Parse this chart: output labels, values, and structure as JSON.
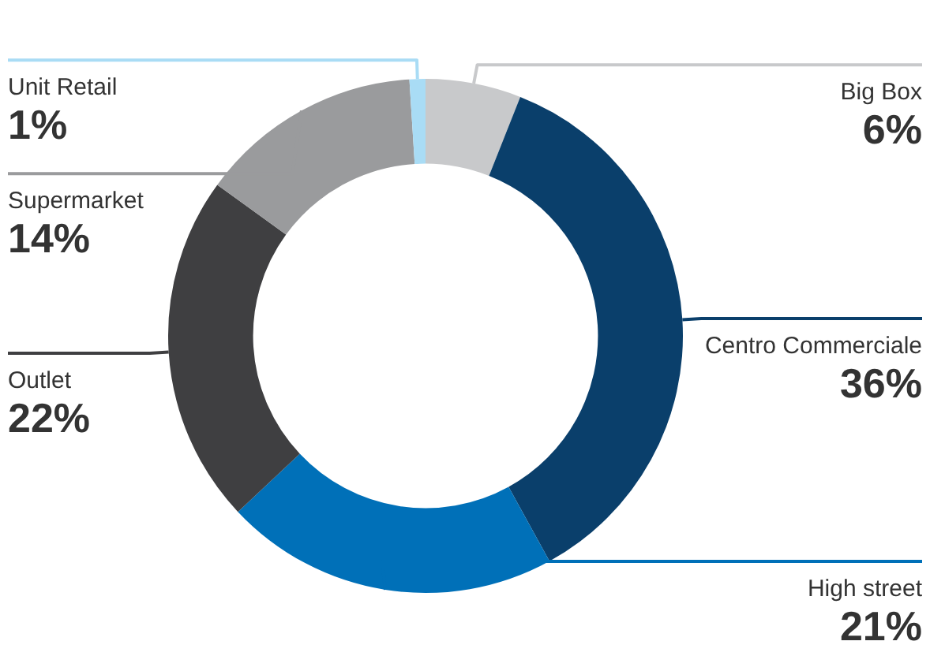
{
  "chart_data": {
    "type": "donut",
    "categories": [
      "Big Box",
      "Centro Commerciale",
      "High street",
      "Outlet",
      "Supermarket",
      "Unit Retail"
    ],
    "values": [
      6,
      36,
      21,
      22,
      14,
      1
    ],
    "value_labels": [
      "6%",
      "36%",
      "21%",
      "22%",
      "14%",
      "1%"
    ],
    "colors": [
      "#c8c9cb",
      "#0a3f6b",
      "#0070b8",
      "#3f3f41",
      "#9a9b9d",
      "#a9dcf5"
    ],
    "legend": false
  }
}
